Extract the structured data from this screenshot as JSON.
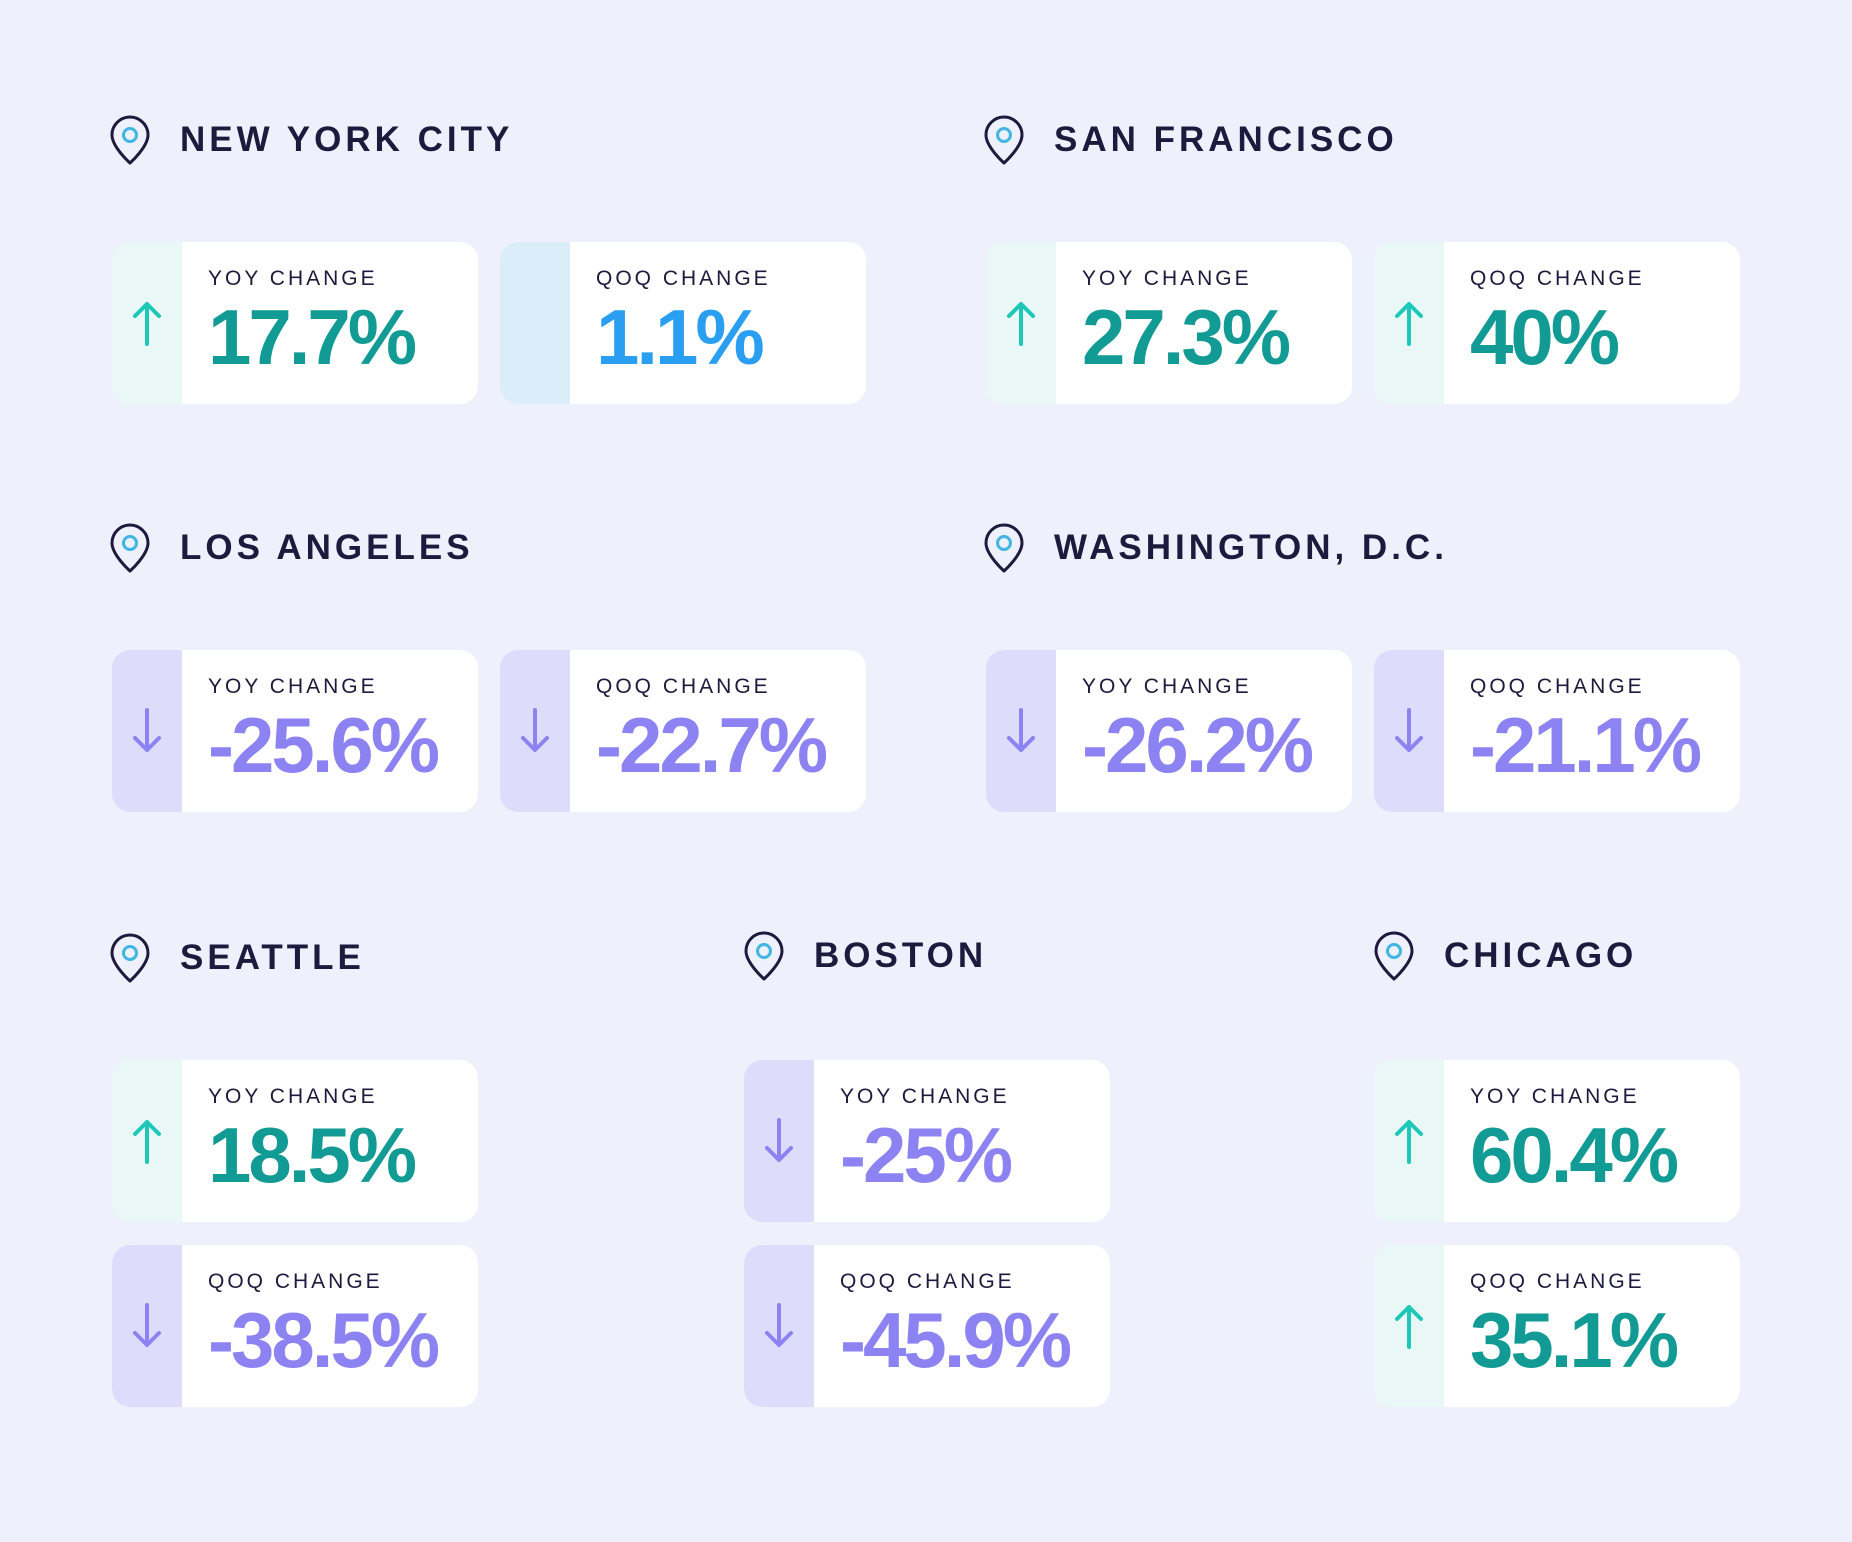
{
  "colors": {
    "background": "#eef0fb",
    "up": "#129a94",
    "down": "#8c82f2",
    "flat": "#2a9ef0",
    "heading": "#1d1a3d"
  },
  "cities": [
    {
      "name": "NEW YORK CITY",
      "yoy": {
        "label": "YOY CHANGE",
        "value": "17.7%",
        "direction": "up"
      },
      "qoq": {
        "label": "QOQ CHANGE",
        "value": "1.1%",
        "direction": "flat"
      }
    },
    {
      "name": "SAN FRANCISCO",
      "yoy": {
        "label": "YOY CHANGE",
        "value": "27.3%",
        "direction": "up"
      },
      "qoq": {
        "label": "QOQ CHANGE",
        "value": "40%",
        "direction": "up"
      }
    },
    {
      "name": "LOS ANGELES",
      "yoy": {
        "label": "YOY CHANGE",
        "value": "-25.6%",
        "direction": "down"
      },
      "qoq": {
        "label": "QOQ CHANGE",
        "value": "-22.7%",
        "direction": "down"
      }
    },
    {
      "name": "WASHINGTON, D.C.",
      "yoy": {
        "label": "YOY CHANGE",
        "value": "-26.2%",
        "direction": "down"
      },
      "qoq": {
        "label": "QOQ CHANGE",
        "value": "-21.1%",
        "direction": "down"
      }
    },
    {
      "name": "SEATTLE",
      "yoy": {
        "label": "YOY CHANGE",
        "value": "18.5%",
        "direction": "up"
      },
      "qoq": {
        "label": "QOQ CHANGE",
        "value": "-38.5%",
        "direction": "down"
      }
    },
    {
      "name": "BOSTON",
      "yoy": {
        "label": "YOY CHANGE",
        "value": "-25%",
        "direction": "down"
      },
      "qoq": {
        "label": "QOQ CHANGE",
        "value": "-45.9%",
        "direction": "down"
      }
    },
    {
      "name": "CHICAGO",
      "yoy": {
        "label": "YOY CHANGE",
        "value": "60.4%",
        "direction": "up"
      },
      "qoq": {
        "label": "QOQ CHANGE",
        "value": "35.1%",
        "direction": "up"
      }
    }
  ]
}
